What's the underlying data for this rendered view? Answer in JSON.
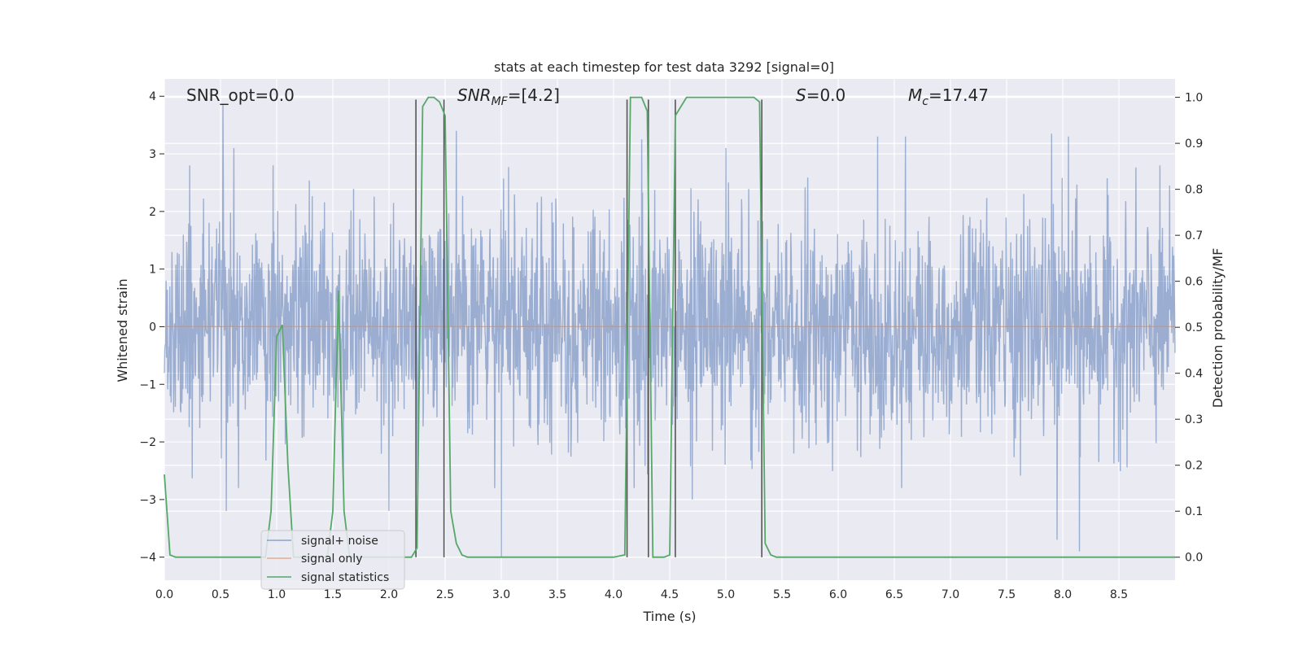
{
  "chart_data": {
    "type": "line",
    "title": "stats at each timestep for test data 3292 [signal=0]",
    "xlabel": "Time (s)",
    "ylabel_left": "Whitened strain",
    "ylabel_right": "Detection probability/MF",
    "xlim": [
      0.0,
      9.0
    ],
    "ylim_left": [
      -4.4,
      4.3
    ],
    "ylim_right": [
      -0.05,
      1.04
    ],
    "xticks": [
      "0.0",
      "0.5",
      "1.0",
      "1.5",
      "2.0",
      "2.5",
      "3.0",
      "3.5",
      "4.0",
      "4.5",
      "5.0",
      "5.5",
      "6.0",
      "6.5",
      "7.0",
      "7.5",
      "8.0",
      "8.5"
    ],
    "yticks_left": [
      "4",
      "3",
      "2",
      "1",
      "0",
      "−1",
      "−2",
      "−3",
      "−4"
    ],
    "yticks_right": [
      "1.0",
      "0.9",
      "0.8",
      "0.7",
      "0.6",
      "0.5",
      "0.4",
      "0.3",
      "0.2",
      "0.1",
      "0.0"
    ],
    "grid": true,
    "legend_placement": "lower-left",
    "annotations": [
      {
        "text": "SNR_opt=0.0",
        "x": 0.2,
        "y": 4.0
      },
      {
        "text": "=[4.2]",
        "label_main": "SNR",
        "label_sub": "MF",
        "x": 2.6,
        "y": 4.0
      },
      {
        "text": "=0.0",
        "label_main": "S",
        "x": 5.6,
        "y": 4.0
      },
      {
        "text": "=17.47",
        "label_main": "M",
        "label_sub": "c",
        "x": 6.6,
        "y": 4.0
      }
    ],
    "series": [
      {
        "name": "signal+ noise",
        "color": "#4c72b0",
        "axis": "left",
        "envelope_note": "dense whitened noise trace",
        "typical_max": 1.5,
        "typical_min": -1.6,
        "spikes": [
          [
            0.52,
            3.85
          ],
          [
            0.62,
            3.1
          ],
          [
            2.6,
            3.4
          ],
          [
            4.25,
            3.25
          ],
          [
            5.0,
            3.1
          ],
          [
            6.35,
            3.3
          ],
          [
            6.6,
            3.3
          ],
          [
            7.9,
            3.35
          ],
          [
            8.05,
            3.3
          ],
          [
            3.0,
            -4.0
          ],
          [
            8.15,
            -3.9
          ],
          [
            7.95,
            -3.7
          ],
          [
            4.7,
            -3.0
          ],
          [
            2.0,
            -3.2
          ],
          [
            0.55,
            -3.2
          ]
        ]
      },
      {
        "name": "signal only",
        "color": "#dd8452",
        "axis": "left",
        "x": [
          0.0,
          9.0
        ],
        "y": [
          0.0,
          0.0
        ]
      },
      {
        "name": "signal statistics",
        "color": "#55a868",
        "axis": "right",
        "x": [
          0.0,
          0.05,
          0.1,
          0.15,
          0.9,
          0.95,
          1.0,
          1.05,
          1.1,
          1.15,
          1.45,
          1.5,
          1.55,
          1.6,
          1.65,
          2.2,
          2.25,
          2.3,
          2.35,
          2.4,
          2.45,
          2.5,
          2.55,
          2.6,
          2.65,
          2.7,
          4.0,
          4.1,
          4.15,
          4.2,
          4.25,
          4.3,
          4.35,
          4.4,
          4.45,
          4.5,
          4.55,
          4.6,
          4.65,
          4.7,
          4.75,
          5.25,
          5.3,
          5.35,
          5.4,
          5.45,
          6.0,
          9.0
        ],
        "y": [
          0.18,
          0.005,
          0.0,
          0.0,
          0.0,
          0.1,
          0.48,
          0.505,
          0.2,
          0.0,
          0.0,
          0.1,
          0.58,
          0.1,
          0.0,
          0.0,
          0.02,
          0.98,
          1.0,
          1.0,
          0.99,
          0.96,
          0.1,
          0.03,
          0.005,
          0.0,
          0.0,
          0.005,
          1.0,
          1.0,
          1.0,
          0.97,
          0.0,
          0.0,
          0.0,
          0.005,
          0.96,
          0.98,
          1.0,
          1.0,
          1.0,
          1.0,
          0.99,
          0.03,
          0.005,
          0.0,
          0.0,
          0.0
        ]
      }
    ],
    "vertical_markers": [
      2.24,
      2.49,
      4.12,
      4.31,
      4.55,
      5.32
    ],
    "marker_color": "#555555"
  }
}
